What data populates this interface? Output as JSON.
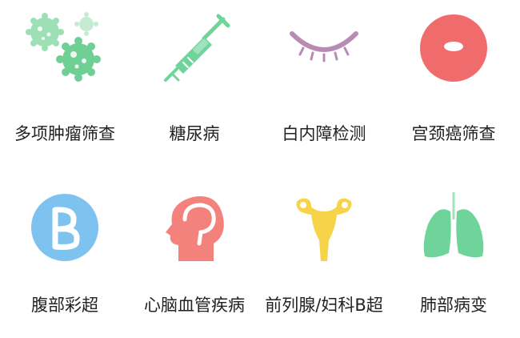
{
  "items": [
    {
      "label": "多项肿瘤筛查",
      "icon": "cells-icon",
      "color": "#8ddba8"
    },
    {
      "label": "糖尿病",
      "icon": "syringe-icon",
      "color": "#6fd49a"
    },
    {
      "label": "白内障检测",
      "icon": "eye-icon",
      "color": "#b88bb4"
    },
    {
      "label": "宫颈癌筛查",
      "icon": "cervix-icon",
      "color": "#f06c6c"
    },
    {
      "label": "腹部彩超",
      "icon": "b-ultrasound-icon",
      "color": "#7ec3ef"
    },
    {
      "label": "心脑血管疾病",
      "icon": "head-brain-icon",
      "color": "#f4827c"
    },
    {
      "label": "前列腺/妇科B超",
      "icon": "uterus-icon",
      "color": "#f7d34a"
    },
    {
      "label": "肺部病变",
      "icon": "lungs-icon",
      "color": "#6fd49a"
    }
  ]
}
